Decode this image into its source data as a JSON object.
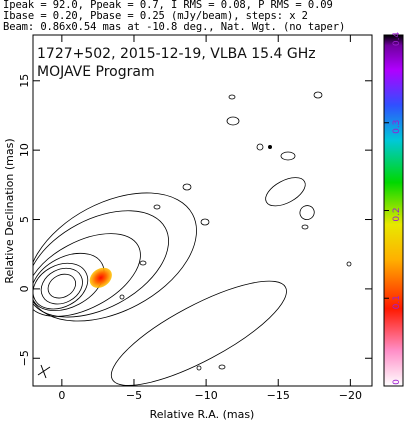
{
  "header": {
    "line1": "Ipeak = 92.0, Ppeak = 0.7, I RMS = 0.08, P RMS = 0.09",
    "line2": "Ibase = 0.20, Pbase = 0.25 (mJy/beam), steps: x 2",
    "line3": "Beam: 0.86x0.54 mas at -10.8 deg., Nat. Wgt. (no taper)"
  },
  "plot_title": {
    "line1": "1727+502, 2015-12-19, VLBA 15.4 GHz",
    "line2": "MOJAVE Program"
  },
  "chart_data": {
    "type": "contour",
    "xlabel": "Relative R.A. (mas)",
    "ylabel": "Relative Declination (mas)",
    "xlim": [
      2.0,
      -21.5
    ],
    "ylim": [
      -7.0,
      18.3
    ],
    "xticks": [
      0,
      -5,
      -10,
      -15,
      -20
    ],
    "yticks": [
      -5,
      0,
      5,
      10,
      15
    ],
    "xtick_labels": [
      "0",
      "−5",
      "−10",
      "−15",
      "−20"
    ],
    "ytick_labels": [
      "−5",
      "0",
      "5",
      "10",
      "15"
    ],
    "colorbar": {
      "min": 0,
      "max": 0.4,
      "ticks": [
        0,
        0.1,
        0.2,
        0.3,
        0.4
      ],
      "tick_labels": [
        "0",
        "0.1",
        "0.2",
        "0.3",
        "0.4"
      ]
    },
    "contours": [
      {
        "x": 0.0,
        "y": 0.2,
        "rx": 1.0,
        "ry": 0.8
      },
      {
        "x": 0.0,
        "y": 0.2,
        "rx": 1.5,
        "ry": 1.2
      },
      {
        "x": 0.1,
        "y": 0.2,
        "rx": 2.0,
        "ry": 1.5
      },
      {
        "x": -0.4,
        "y": 0.5,
        "rx": 2.7,
        "ry": 1.8
      },
      {
        "x": -1.5,
        "y": 1.0,
        "rx": 4.3,
        "ry": 2.4
      },
      {
        "x": -2.5,
        "y": 1.8,
        "rx": 5.3,
        "ry": 3.2
      },
      {
        "x": -3.5,
        "y": 2.3,
        "rx": 6.3,
        "ry": 3.9
      },
      {
        "x": -9.5,
        "y": -3.2,
        "rx": 6.8,
        "ry": 2.0
      },
      {
        "x": -15.5,
        "y": 7.0,
        "rx": 1.5,
        "ry": 0.8
      },
      {
        "x": -17.0,
        "y": 5.5,
        "rx": 0.5,
        "ry": 0.5
      }
    ],
    "polarization_peak": {
      "x": -2.7,
      "y": 0.8
    }
  }
}
